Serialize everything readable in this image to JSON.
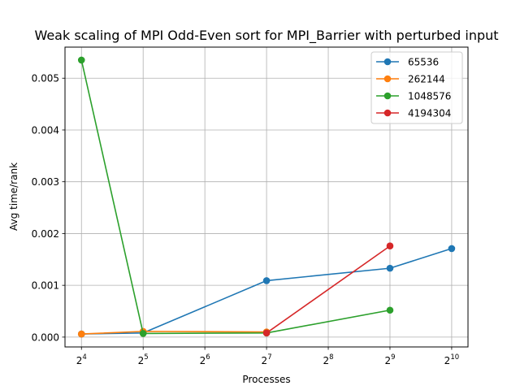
{
  "chart_data": {
    "type": "line",
    "title": "Weak scaling of MPI Odd-Even sort for MPI_Barrier with perturbed input",
    "xlabel": "Processes",
    "ylabel": "Avg time/rank",
    "x_scale": "log2",
    "x_ticks": [
      {
        "value": 16,
        "base": "2",
        "exp": "4"
      },
      {
        "value": 32,
        "base": "2",
        "exp": "5"
      },
      {
        "value": 64,
        "base": "2",
        "exp": "6"
      },
      {
        "value": 128,
        "base": "2",
        "exp": "7"
      },
      {
        "value": 256,
        "base": "2",
        "exp": "8"
      },
      {
        "value": 512,
        "base": "2",
        "exp": "9"
      },
      {
        "value": 1024,
        "base": "2",
        "exp": "10"
      }
    ],
    "y_ticks": [
      "0.000",
      "0.001",
      "0.002",
      "0.003",
      "0.004",
      "0.005"
    ],
    "y_tick_values": [
      0,
      0.001,
      0.002,
      0.003,
      0.004,
      0.005
    ],
    "xlim": [
      13.3,
      1230
    ],
    "ylim": [
      -0.00019,
      0.0056
    ],
    "grid": true,
    "legend_position": "top-right",
    "series": [
      {
        "name": "65536",
        "color": "#1f77b4",
        "x": [
          16,
          32,
          128,
          512,
          1024
        ],
        "y": [
          6e-05,
          8e-05,
          0.00109,
          0.00133,
          0.00171
        ]
      },
      {
        "name": "262144",
        "color": "#ff7f0e",
        "x": [
          16,
          32,
          128
        ],
        "y": [
          6e-05,
          0.00011,
          0.0001
        ]
      },
      {
        "name": "1048576",
        "color": "#2ca02c",
        "x": [
          16,
          32,
          128,
          512
        ],
        "y": [
          0.00535,
          7e-05,
          8e-05,
          0.00052
        ]
      },
      {
        "name": "4194304",
        "color": "#d62728",
        "x": [
          128,
          512
        ],
        "y": [
          8e-05,
          0.00176
        ]
      }
    ]
  }
}
